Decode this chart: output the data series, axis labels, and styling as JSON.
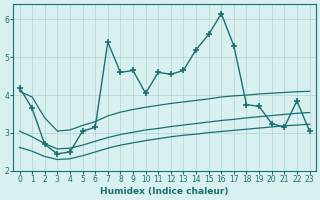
{
  "xlabel": "Humidex (Indice chaleur)",
  "ylabel": "",
  "bg_color": "#d8f0f0",
  "line_color": "#1a7070",
  "grid_color": "#b8d8d8",
  "xlim": [
    -0.5,
    23.5
  ],
  "ylim": [
    2.0,
    6.4
  ],
  "yticks": [
    2,
    3,
    4,
    5,
    6
  ],
  "xticks": [
    0,
    1,
    2,
    3,
    4,
    5,
    6,
    7,
    8,
    9,
    10,
    11,
    12,
    13,
    14,
    15,
    16,
    17,
    18,
    19,
    20,
    21,
    22,
    23
  ],
  "main_data_x": [
    0,
    1,
    2,
    3,
    4,
    5,
    6,
    7,
    8,
    9,
    10,
    11,
    12,
    13,
    14,
    15,
    16,
    17,
    18,
    19,
    20,
    21,
    22,
    23
  ],
  "main_data_y": [
    4.2,
    3.65,
    2.7,
    2.45,
    2.5,
    3.05,
    3.15,
    5.4,
    4.6,
    4.65,
    4.05,
    4.6,
    4.55,
    4.65,
    5.2,
    5.6,
    6.15,
    5.3,
    3.75,
    3.7,
    3.25,
    3.15,
    3.85,
    3.05
  ],
  "band_upper_x": [
    0,
    1,
    2,
    3,
    4,
    5,
    6,
    7,
    8,
    9,
    10,
    11,
    12,
    13,
    14,
    15,
    16,
    17,
    18,
    19,
    20,
    21,
    22,
    23
  ],
  "band_upper_y": [
    4.1,
    3.95,
    3.4,
    3.05,
    3.08,
    3.2,
    3.3,
    3.45,
    3.55,
    3.62,
    3.68,
    3.73,
    3.78,
    3.82,
    3.86,
    3.9,
    3.95,
    3.98,
    4.0,
    4.03,
    4.05,
    4.07,
    4.09,
    4.1
  ],
  "band_mid_x": [
    0,
    1,
    2,
    3,
    4,
    5,
    6,
    7,
    8,
    9,
    10,
    11,
    12,
    13,
    14,
    15,
    16,
    17,
    18,
    19,
    20,
    21,
    22,
    23
  ],
  "band_mid_y": [
    3.05,
    2.9,
    2.72,
    2.58,
    2.6,
    2.68,
    2.78,
    2.88,
    2.96,
    3.02,
    3.08,
    3.12,
    3.17,
    3.21,
    3.25,
    3.29,
    3.33,
    3.36,
    3.4,
    3.43,
    3.46,
    3.49,
    3.52,
    3.54
  ],
  "band_low_x": [
    0,
    1,
    2,
    3,
    4,
    5,
    6,
    7,
    8,
    9,
    10,
    11,
    12,
    13,
    14,
    15,
    16,
    17,
    18,
    19,
    20,
    21,
    22,
    23
  ],
  "band_low_y": [
    2.62,
    2.52,
    2.38,
    2.3,
    2.32,
    2.4,
    2.5,
    2.6,
    2.68,
    2.74,
    2.8,
    2.85,
    2.9,
    2.94,
    2.97,
    3.01,
    3.04,
    3.07,
    3.1,
    3.13,
    3.16,
    3.19,
    3.21,
    3.23
  ]
}
